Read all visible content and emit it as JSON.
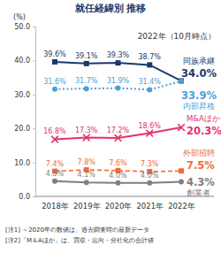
{
  "chart_data": {
    "type": "line",
    "title": "就任経緯別 推移",
    "subtitle": "2022年（10月時点）",
    "y_label": "(%)",
    "categories": [
      "2018年",
      "2019年",
      "2020年",
      "2021年",
      "2022年"
    ],
    "series": [
      {
        "name": "同族承継",
        "color": "#1b3a6b",
        "marker": "square",
        "line_style": "solid",
        "values": [
          39.6,
          39.1,
          39.3,
          38.7,
          34.0
        ],
        "value_labels": [
          "39.6%",
          "39.1%",
          "39.3%",
          "38.7%",
          "34.0%"
        ]
      },
      {
        "name": "内部昇格",
        "color": "#4a9fd8",
        "marker": "circle",
        "line_style": "dotted",
        "values": [
          31.6,
          31.7,
          31.9,
          31.4,
          33.9
        ],
        "value_labels": [
          "31.6%",
          "31.7%",
          "31.9%",
          "31.4%",
          "33.9%"
        ]
      },
      {
        "name": "M&Aほか",
        "color": "#e2336b",
        "marker": "x",
        "line_style": "solid",
        "values": [
          16.8,
          17.3,
          17.2,
          18.6,
          20.3
        ],
        "value_labels": [
          "16.8%",
          "17.3%",
          "17.2%",
          "18.6%",
          "20.3%"
        ]
      },
      {
        "name": "外部招聘",
        "color": "#f26b3a",
        "marker": "square",
        "line_style": "dashed",
        "values": [
          7.4,
          7.8,
          7.6,
          7.3,
          7.5
        ],
        "value_labels": [
          "7.4%",
          "7.8%",
          "7.6%",
          "7.3%",
          "7.5%"
        ]
      },
      {
        "name": "創業者",
        "color": "#7f7f7f",
        "marker": "circle",
        "line_style": "solid",
        "values": [
          4.5,
          4.1,
          4.0,
          4.0,
          4.3
        ],
        "value_labels": [
          "4.5%",
          "4.1%",
          "4.0%",
          "4.0%",
          "4.3%"
        ]
      }
    ],
    "ylim": [
      0,
      50
    ],
    "yticks": [
      {
        "value": 0,
        "label": "0.0"
      },
      {
        "value": 10,
        "label": "10.0"
      },
      {
        "value": 20,
        "label": "20.0"
      },
      {
        "value": 30,
        "label": "30.0"
      },
      {
        "value": 40,
        "label": "40.0"
      },
      {
        "value": 50,
        "label": "50.0"
      }
    ],
    "grid": false,
    "data_labels": true,
    "notes": [
      "[注1] ～2020年の数値は、過去調査時の最新データ",
      "[注2]「M＆Aほか」は、買収・出向・分社化の合計値"
    ]
  }
}
